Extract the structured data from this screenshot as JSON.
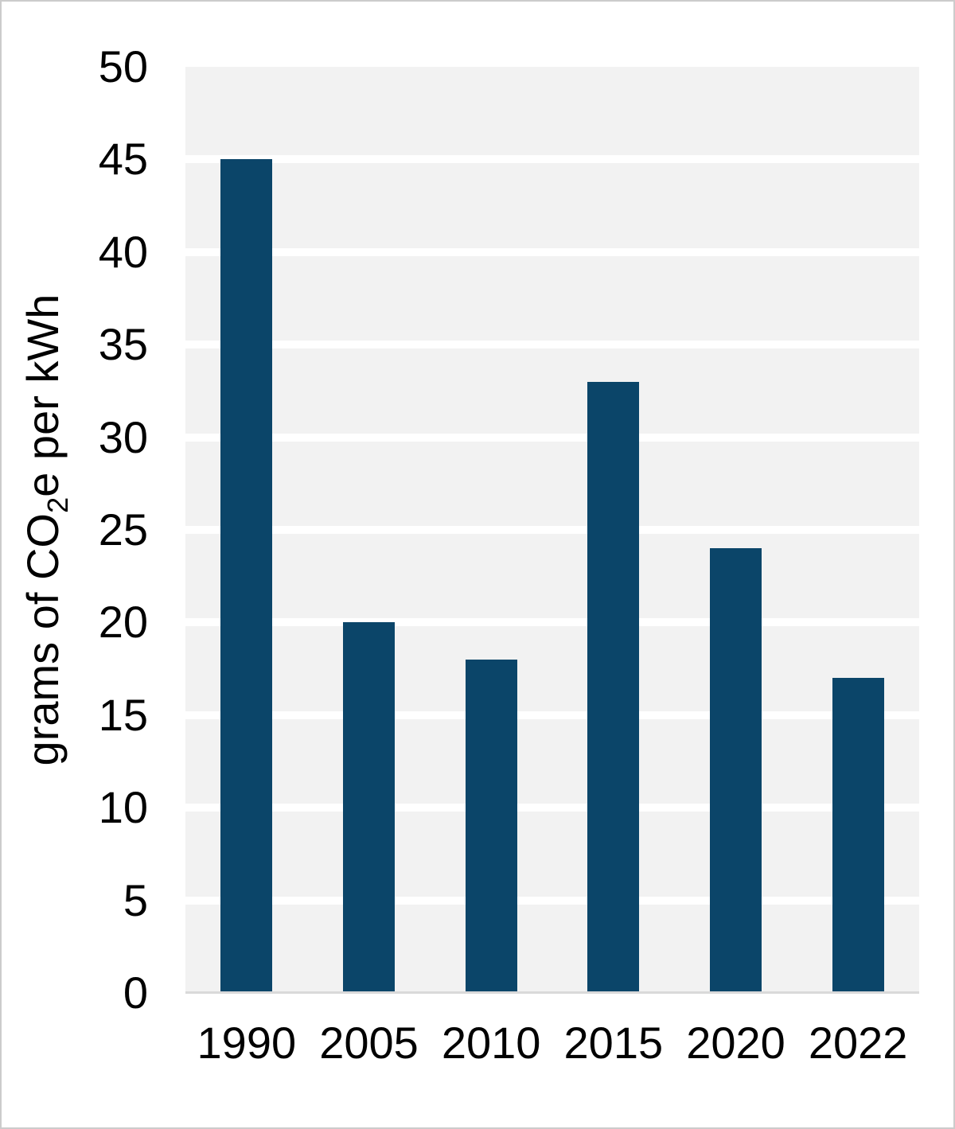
{
  "figure": {
    "ylabel_pre": "grams of CO",
    "ylabel_sub": "2",
    "ylabel_post": "e per kWh"
  },
  "chart_data": {
    "type": "bar",
    "title": "",
    "categories": [
      "1990",
      "2005",
      "2010",
      "2015",
      "2020",
      "2022"
    ],
    "values": [
      45,
      20,
      18,
      33,
      24,
      17
    ],
    "xlabel": "",
    "ylabel": "grams of CO₂e per kWh",
    "ylim": [
      0,
      50
    ],
    "yticks": [
      0,
      5,
      10,
      15,
      20,
      25,
      30,
      35,
      40,
      45,
      50
    ],
    "grid": true,
    "gridline_orientation": "horizontal",
    "legend": false,
    "colors": {
      "bar": "#0b4569",
      "plot_background": "#f2f2f2",
      "gridline": "#ffffff",
      "axis_line": "#d9d9d9",
      "figure_border": "#cccccc",
      "figure_background": "#ffffff",
      "text": "#000000"
    }
  }
}
